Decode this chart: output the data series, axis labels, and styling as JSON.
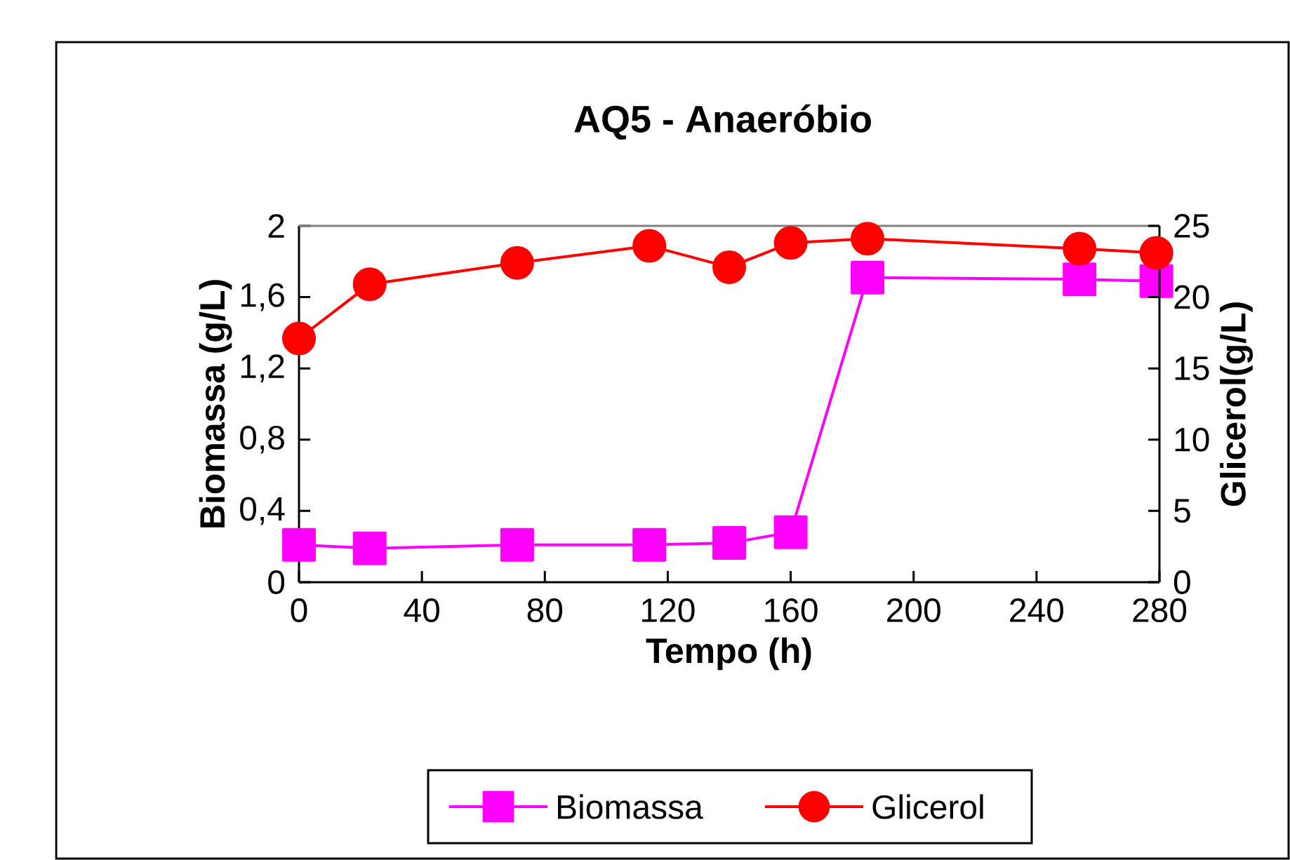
{
  "chart_data": {
    "type": "line",
    "title": "AQ5 - Anaeróbio",
    "xlabel": "Tempo (h)",
    "ylabel": "Biomassa (g/L)",
    "y2label": "Glicerol(g/L)",
    "xlim": [
      0,
      280
    ],
    "xticks": [
      0,
      40,
      80,
      120,
      160,
      200,
      240,
      280
    ],
    "ylim": [
      0,
      2
    ],
    "yticks": [
      0,
      {
        "value": 0.4,
        "label": "0,4"
      },
      {
        "value": 0.8,
        "label": "0,8"
      },
      {
        "value": 1.2,
        "label": "1,2"
      },
      {
        "value": 1.6,
        "label": "1,6"
      },
      2
    ],
    "y2lim": [
      0,
      25
    ],
    "y2ticks": [
      0,
      5,
      10,
      15,
      20,
      25
    ],
    "grid": false,
    "legend": "bottom",
    "series": [
      {
        "name": "Biomassa",
        "color": "#ff00ff",
        "marker": "square",
        "axis": "y",
        "x": [
          0,
          23,
          71,
          114,
          140,
          160,
          185,
          254,
          279
        ],
        "values": [
          0.21,
          0.19,
          0.21,
          0.21,
          0.22,
          0.28,
          1.71,
          1.7,
          1.69
        ]
      },
      {
        "name": "Glicerol",
        "color": "#ff0000",
        "marker": "circle",
        "axis": "y2",
        "x": [
          0,
          23,
          71,
          114,
          140,
          160,
          185,
          254,
          279
        ],
        "values": [
          17.1,
          20.9,
          22.4,
          23.6,
          22.1,
          23.8,
          24.1,
          23.4,
          23.1
        ]
      }
    ]
  }
}
